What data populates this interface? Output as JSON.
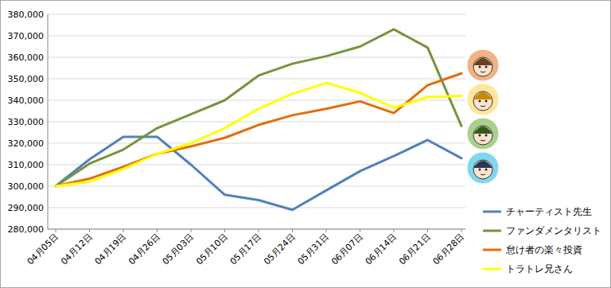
{
  "chart_data": {
    "type": "line",
    "categories": [
      "04月05日",
      "04月12日",
      "04月19日",
      "04月26日",
      "05月03日",
      "05月10日",
      "05月17日",
      "05月24日",
      "05月31日",
      "06月07日",
      "06月14日",
      "06月21日",
      "06月28日"
    ],
    "series": [
      {
        "name": "チャーティスト先生",
        "color": "#4f81bd",
        "values": [
          300000,
          312500,
          323000,
          323000,
          310000,
          296000,
          293500,
          289000,
          298000,
          307000,
          314000,
          321500,
          313000
        ]
      },
      {
        "name": "ファンダメンタリスト",
        "color": "#77933c",
        "values": [
          300000,
          310500,
          317000,
          327000,
          333500,
          340000,
          351500,
          357000,
          360500,
          365000,
          373000,
          364500,
          328000
        ]
      },
      {
        "name": "怠け者の楽々投資",
        "color": "#e46c0a",
        "values": [
          300000,
          303500,
          309000,
          315000,
          318500,
          322500,
          328500,
          333000,
          336000,
          339500,
          334000,
          347000,
          352500
        ]
      },
      {
        "name": "トラトレ兄さん",
        "color": "#ffff00",
        "values": [
          300000,
          302000,
          308000,
          315000,
          320000,
          327000,
          336000,
          343000,
          348000,
          343500,
          336500,
          341500,
          342000
        ]
      }
    ],
    "ylim": [
      280000,
      380000
    ],
    "yticks": [
      {
        "value": 280000,
        "label": "280,000"
      },
      {
        "value": 290000,
        "label": "290,000"
      },
      {
        "value": 300000,
        "label": "300,000"
      },
      {
        "value": 310000,
        "label": "310,000"
      },
      {
        "value": 320000,
        "label": "320,000"
      },
      {
        "value": 330000,
        "label": "330,000"
      },
      {
        "value": 340000,
        "label": "340,000"
      },
      {
        "value": 350000,
        "label": "350,000"
      },
      {
        "value": 360000,
        "label": "360,000"
      },
      {
        "value": 370000,
        "label": "370,000"
      },
      {
        "value": 380000,
        "label": "380,000"
      }
    ],
    "grid": true,
    "legend": "right"
  }
}
